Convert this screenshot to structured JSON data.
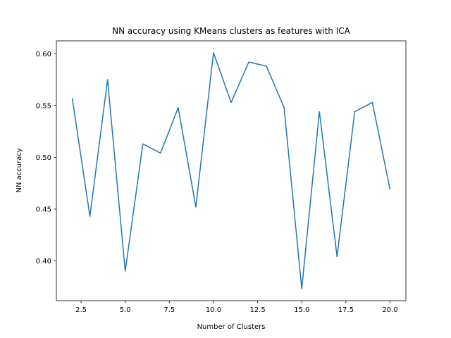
{
  "chart_data": {
    "type": "line",
    "title": "NN accuracy using KMeans clusters as features with ICA",
    "xlabel": "Number of Clusters",
    "ylabel": "NN accuracy",
    "xlim": [
      1.1,
      20.9
    ],
    "ylim": [
      0.3615,
      0.6125
    ],
    "xticks": [
      2.5,
      5.0,
      7.5,
      10.0,
      12.5,
      15.0,
      17.5,
      20.0
    ],
    "xtick_labels": [
      "2.5",
      "5.0",
      "7.5",
      "10.0",
      "12.5",
      "15.0",
      "17.5",
      "20.0"
    ],
    "yticks": [
      0.4,
      0.45,
      0.5,
      0.55,
      0.6
    ],
    "ytick_labels": [
      "0.40",
      "0.45",
      "0.50",
      "0.55",
      "0.60"
    ],
    "grid": false,
    "line_color": "#1f77b4",
    "series": [
      {
        "x": [
          2,
          3,
          4,
          5,
          6,
          7,
          8,
          9,
          10,
          11,
          12,
          13,
          14,
          15,
          16,
          17,
          18,
          19,
          20
        ],
        "y": [
          0.557,
          0.443,
          0.575,
          0.39,
          0.513,
          0.504,
          0.548,
          0.452,
          0.601,
          0.553,
          0.592,
          0.588,
          0.548,
          0.373,
          0.544,
          0.404,
          0.544,
          0.553,
          0.469
        ]
      }
    ]
  }
}
